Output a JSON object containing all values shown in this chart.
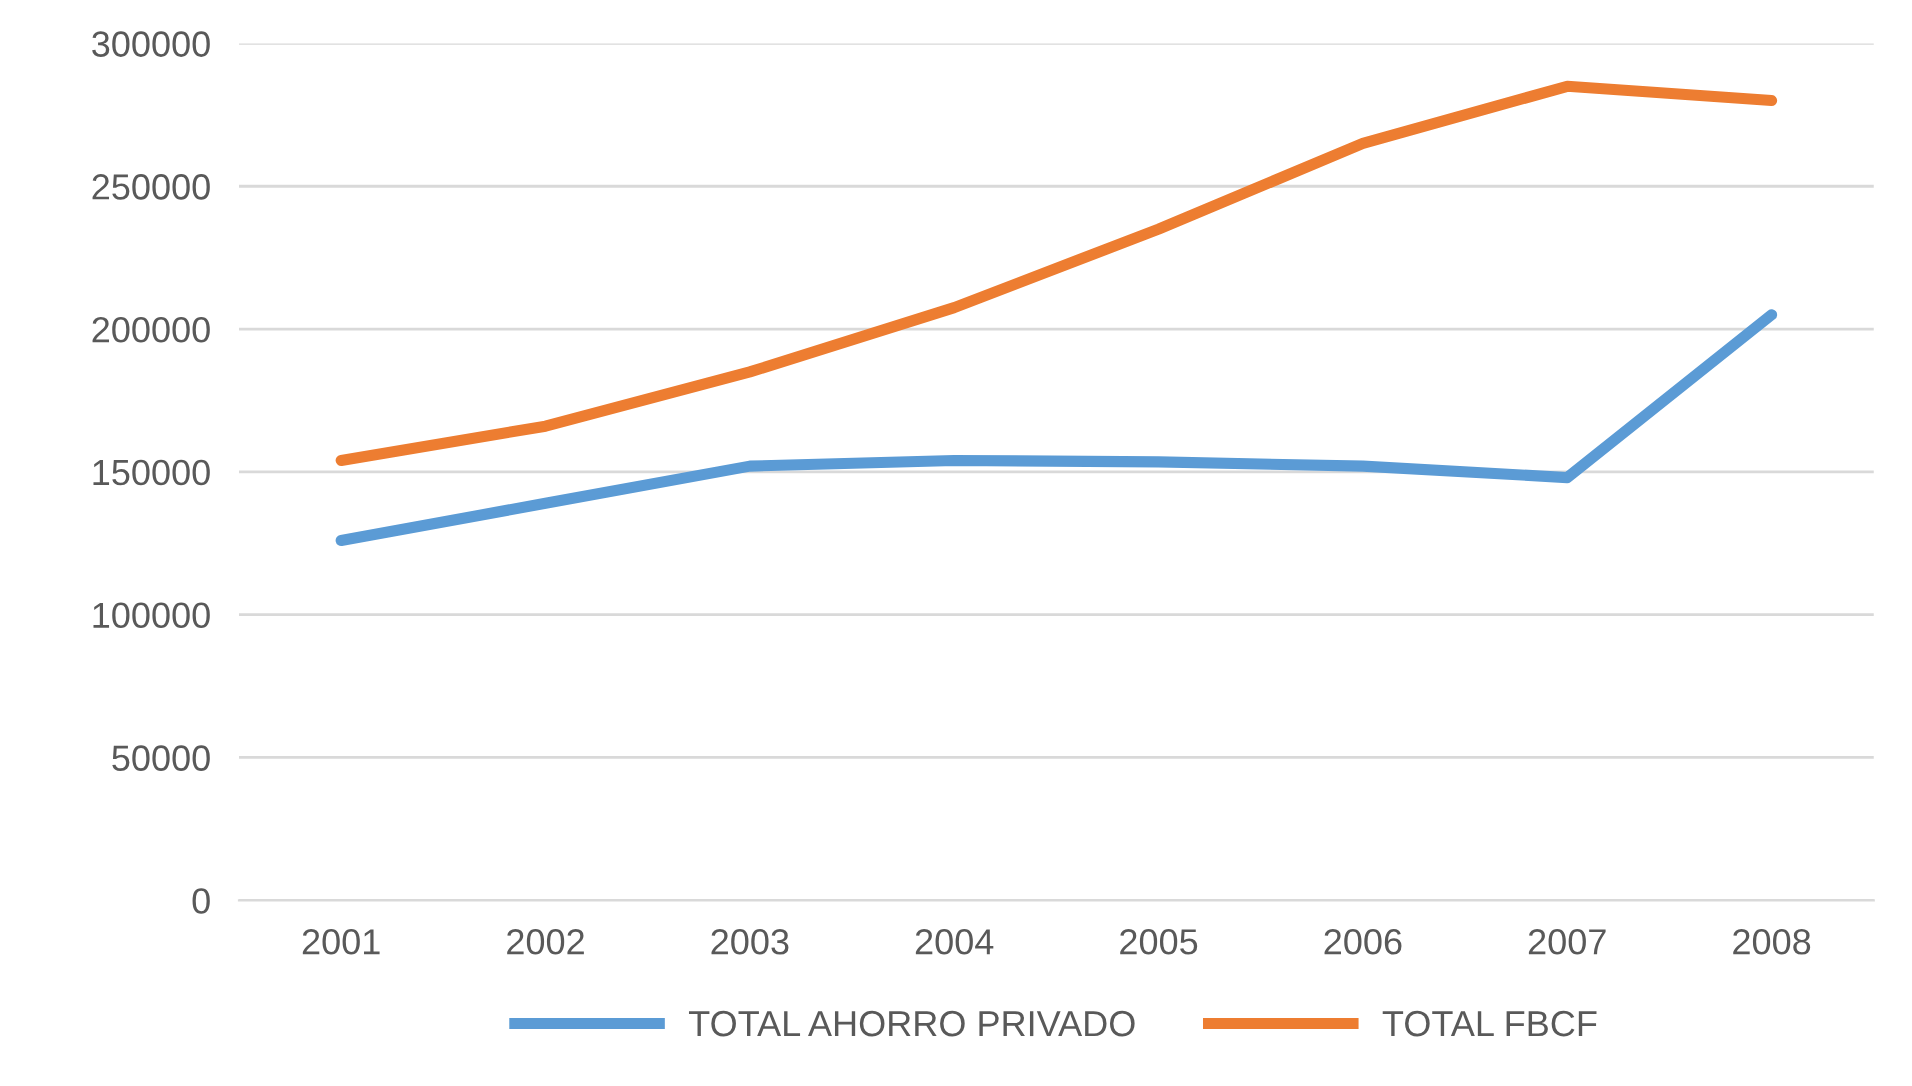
{
  "chart_data": {
    "type": "line",
    "categories": [
      "2001",
      "2002",
      "2003",
      "2004",
      "2005",
      "2006",
      "2007",
      "2008"
    ],
    "series": [
      {
        "name": "TOTAL AHORRO PRIVADO",
        "color": "#5b9bd5",
        "values": [
          126000,
          139000,
          152000,
          154000,
          153500,
          152000,
          148000,
          205000
        ]
      },
      {
        "name": "TOTAL FBCF",
        "color": "#ed7d31",
        "values": [
          154000,
          166000,
          185000,
          207500,
          235000,
          265000,
          285000,
          280000
        ]
      }
    ],
    "ylim": [
      0,
      300000
    ],
    "yticks": [
      0,
      50000,
      100000,
      150000,
      200000,
      250000,
      300000
    ],
    "grid": "y",
    "legend": "bottom",
    "marker": "none",
    "line_style": "solid"
  }
}
